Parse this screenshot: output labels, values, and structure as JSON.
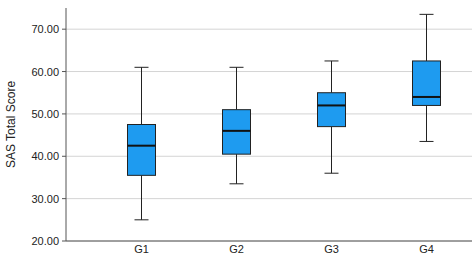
{
  "chart_data": {
    "type": "box",
    "y_label": "SAS Total Score",
    "categories": [
      "G1",
      "G2",
      "G3",
      "G4"
    ],
    "min": [
      25,
      33.5,
      36,
      43.5
    ],
    "q1": [
      35.5,
      40.5,
      47,
      52
    ],
    "median": [
      42.5,
      46,
      52,
      54
    ],
    "q3": [
      47.5,
      51,
      55,
      62.5
    ],
    "max": [
      61,
      61,
      62.5,
      73.5
    ],
    "color": "#1e9bf0",
    "ylim": [
      20,
      75
    ],
    "yticks": [
      {
        "value": 20,
        "label": "20.00"
      },
      {
        "value": 30,
        "label": "30.00"
      },
      {
        "value": 40,
        "label": "40.00"
      },
      {
        "value": 50,
        "label": "50.00"
      },
      {
        "value": 60,
        "label": "60.00"
      },
      {
        "value": 70,
        "label": "70.00"
      }
    ],
    "grid": true
  }
}
